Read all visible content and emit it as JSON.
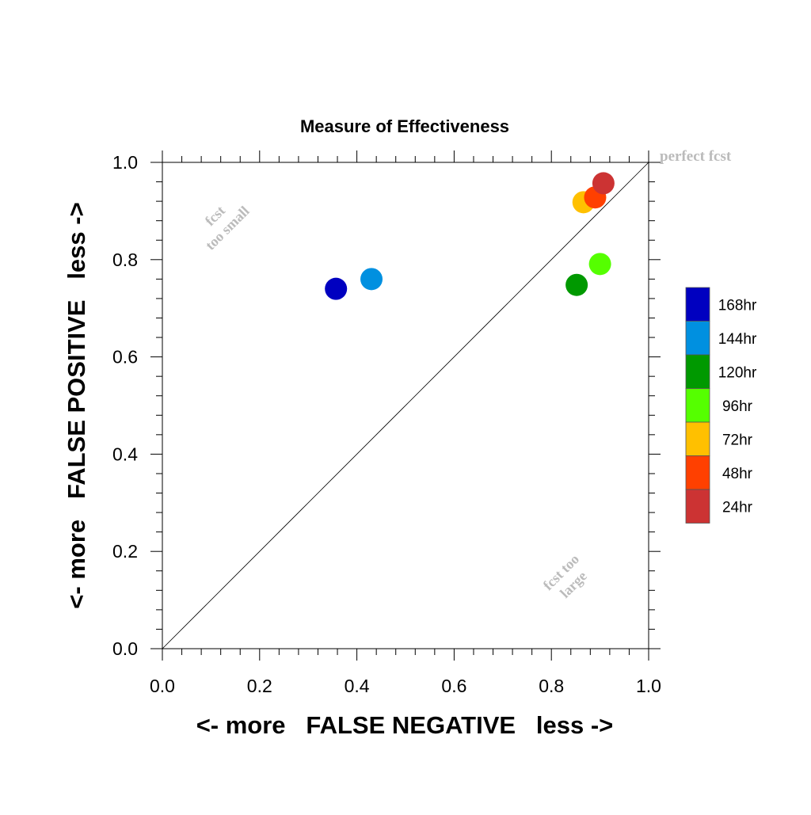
{
  "chart_data": {
    "type": "scatter",
    "title": "Measure of Effectiveness",
    "xlabel": "<- more   FALSE NEGATIVE   less ->",
    "ylabel": "<- more   FALSE POSITIVE   less ->",
    "xlim": [
      0.0,
      1.0
    ],
    "ylim": [
      0.0,
      1.0
    ],
    "x_ticks": [
      "0.0",
      "0.2",
      "0.4",
      "0.6",
      "0.8",
      "1.0"
    ],
    "y_ticks": [
      "0.0",
      "0.2",
      "0.4",
      "0.6",
      "0.8",
      "1.0"
    ],
    "reference_line": "y = x",
    "grid": false,
    "legend_position": "right",
    "annotations": {
      "top_right": "perfect fcst",
      "upper_left_line1": "fcst",
      "upper_left_line2": "too small",
      "lower_right_line1": "fcst too",
      "lower_right_line2": "large"
    },
    "series": [
      {
        "name": "168hr",
        "color": "#0000c0",
        "x": 0.357,
        "y": 0.74
      },
      {
        "name": "144hr",
        "color": "#0090e0",
        "x": 0.43,
        "y": 0.76
      },
      {
        "name": "120hr",
        "color": "#009900",
        "x": 0.852,
        "y": 0.748
      },
      {
        "name": "96hr",
        "color": "#55ff00",
        "x": 0.9,
        "y": 0.791
      },
      {
        "name": "72hr",
        "color": "#ffc000",
        "x": 0.866,
        "y": 0.918
      },
      {
        "name": "48hr",
        "color": "#ff4000",
        "x": 0.89,
        "y": 0.928
      },
      {
        "name": "24hr",
        "color": "#cc3333",
        "x": 0.907,
        "y": 0.957
      }
    ]
  }
}
